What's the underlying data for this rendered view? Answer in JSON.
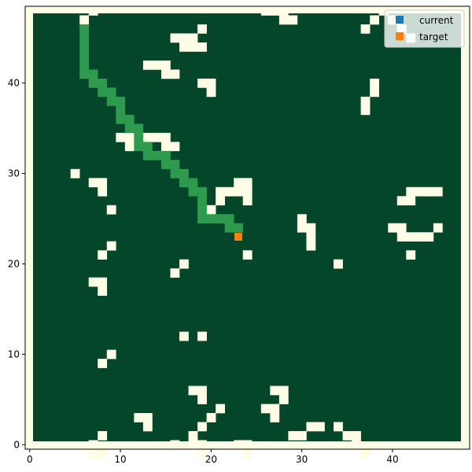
{
  "chart_data": {
    "type": "heatmap",
    "title": "",
    "xlabel": "",
    "ylabel": "",
    "xlim": [
      -0.5,
      48.5
    ],
    "ylim": [
      -0.5,
      48.5
    ],
    "x_ticks": [
      0,
      10,
      20,
      30,
      40
    ],
    "y_ticks": [
      0,
      10,
      20,
      30,
      40
    ],
    "grid": false,
    "legend_position": "top-right",
    "colors": {
      "background": "#fffde6",
      "free": "#04462a",
      "obstacle": "#fffde6",
      "path": "#2e9a4e",
      "current": "#1f77b4",
      "target": "#ff7f0e"
    },
    "obstacles": [
      [
        7,
        48
      ],
      [
        26,
        48
      ],
      [
        27,
        48
      ],
      [
        28,
        48
      ],
      [
        39,
        48
      ],
      [
        6,
        47
      ],
      [
        28,
        47
      ],
      [
        29,
        47
      ],
      [
        38,
        47
      ],
      [
        40,
        47
      ],
      [
        19,
        46
      ],
      [
        37,
        46
      ],
      [
        41,
        46
      ],
      [
        16,
        45
      ],
      [
        17,
        45
      ],
      [
        18,
        45
      ],
      [
        42,
        45
      ],
      [
        17,
        44
      ],
      [
        18,
        44
      ],
      [
        19,
        44
      ],
      [
        13,
        42
      ],
      [
        14,
        42
      ],
      [
        15,
        42
      ],
      [
        15,
        41
      ],
      [
        16,
        41
      ],
      [
        19,
        40
      ],
      [
        20,
        40
      ],
      [
        38,
        40
      ],
      [
        20,
        39
      ],
      [
        38,
        39
      ],
      [
        37,
        38
      ],
      [
        37,
        37
      ],
      [
        10,
        34
      ],
      [
        11,
        34
      ],
      [
        13,
        34
      ],
      [
        14,
        34
      ],
      [
        15,
        34
      ],
      [
        11,
        33
      ],
      [
        15,
        33
      ],
      [
        16,
        33
      ],
      [
        5,
        30
      ],
      [
        7,
        29
      ],
      [
        8,
        29
      ],
      [
        23,
        29
      ],
      [
        24,
        29
      ],
      [
        8,
        28
      ],
      [
        21,
        28
      ],
      [
        22,
        28
      ],
      [
        23,
        28
      ],
      [
        24,
        28
      ],
      [
        42,
        28
      ],
      [
        43,
        28
      ],
      [
        44,
        28
      ],
      [
        45,
        28
      ],
      [
        21,
        27
      ],
      [
        24,
        27
      ],
      [
        41,
        27
      ],
      [
        42,
        27
      ],
      [
        9,
        26
      ],
      [
        20,
        26
      ],
      [
        30,
        25
      ],
      [
        30,
        24
      ],
      [
        31,
        24
      ],
      [
        40,
        24
      ],
      [
        41,
        24
      ],
      [
        45,
        24
      ],
      [
        31,
        23
      ],
      [
        41,
        23
      ],
      [
        42,
        23
      ],
      [
        43,
        23
      ],
      [
        44,
        23
      ],
      [
        9,
        22
      ],
      [
        31,
        22
      ],
      [
        8,
        21
      ],
      [
        24,
        21
      ],
      [
        42,
        21
      ],
      [
        17,
        20
      ],
      [
        34,
        20
      ],
      [
        16,
        19
      ],
      [
        7,
        18
      ],
      [
        8,
        18
      ],
      [
        8,
        17
      ],
      [
        17,
        12
      ],
      [
        19,
        12
      ],
      [
        9,
        10
      ],
      [
        8,
        9
      ],
      [
        18,
        6
      ],
      [
        19,
        6
      ],
      [
        27,
        6
      ],
      [
        28,
        6
      ],
      [
        19,
        5
      ],
      [
        28,
        5
      ],
      [
        21,
        4
      ],
      [
        26,
        4
      ],
      [
        27,
        4
      ],
      [
        12,
        3
      ],
      [
        13,
        3
      ],
      [
        20,
        3
      ],
      [
        27,
        3
      ],
      [
        13,
        2
      ],
      [
        19,
        2
      ],
      [
        31,
        2
      ],
      [
        32,
        2
      ],
      [
        34,
        2
      ],
      [
        8,
        1
      ],
      [
        18,
        1
      ],
      [
        29,
        1
      ],
      [
        30,
        1
      ],
      [
        35,
        1
      ],
      [
        36,
        1
      ],
      [
        16,
        0
      ],
      [
        18,
        0
      ],
      [
        19,
        0
      ],
      [
        23,
        0
      ],
      [
        24,
        0
      ],
      [
        36,
        0
      ],
      [
        8,
        -1
      ],
      [
        19,
        -1
      ],
      [
        24,
        -1
      ],
      [
        37,
        -1
      ],
      [
        7,
        0
      ],
      [
        7,
        -1
      ]
    ],
    "path": [
      [
        6,
        46
      ],
      [
        6,
        45
      ],
      [
        6,
        44
      ],
      [
        6,
        43
      ],
      [
        6,
        42
      ],
      [
        6,
        41
      ],
      [
        7,
        41
      ],
      [
        7,
        40
      ],
      [
        8,
        40
      ],
      [
        8,
        39
      ],
      [
        9,
        39
      ],
      [
        9,
        38
      ],
      [
        10,
        38
      ],
      [
        10,
        37
      ],
      [
        10,
        36
      ],
      [
        11,
        36
      ],
      [
        11,
        35
      ],
      [
        12,
        35
      ],
      [
        12,
        34
      ],
      [
        12,
        33
      ],
      [
        13,
        33
      ],
      [
        13,
        32
      ],
      [
        14,
        32
      ],
      [
        15,
        32
      ],
      [
        15,
        31
      ],
      [
        16,
        31
      ],
      [
        16,
        30
      ],
      [
        17,
        30
      ],
      [
        17,
        29
      ],
      [
        18,
        29
      ],
      [
        18,
        28
      ],
      [
        19,
        28
      ],
      [
        19,
        27
      ],
      [
        19,
        26
      ],
      [
        19,
        25
      ],
      [
        20,
        25
      ],
      [
        21,
        25
      ],
      [
        22,
        25
      ],
      [
        22,
        24
      ],
      [
        23,
        24
      ]
    ],
    "current": [
      23,
      23
    ],
    "target": [
      23,
      23
    ],
    "legend": [
      "current",
      "target"
    ]
  }
}
